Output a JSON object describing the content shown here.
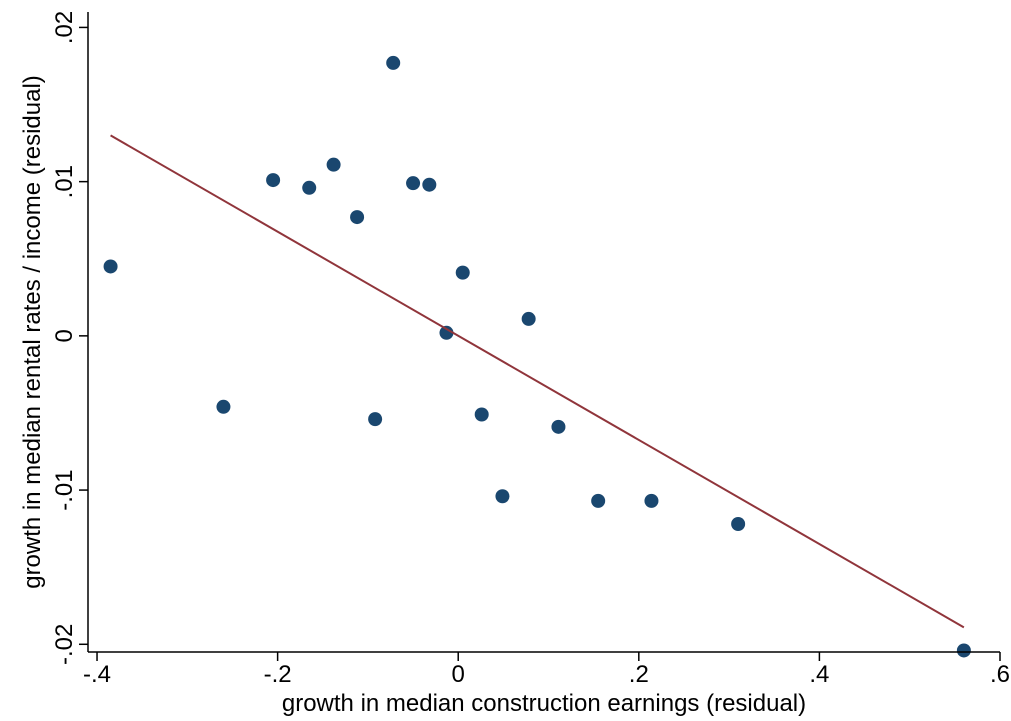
{
  "chart_data": {
    "type": "scatter",
    "title": "",
    "xlabel": "growth in median construction earnings (residual)",
    "ylabel": "growth in median rental rates / income (residual)",
    "xlim": [
      -0.41,
      0.6
    ],
    "ylim": [
      -0.0205,
      0.021
    ],
    "xticks": [
      -0.4,
      -0.2,
      0,
      0.2,
      0.4,
      0.6
    ],
    "xtick_labels": [
      "-.4",
      "-.2",
      "0",
      ".2",
      ".4",
      ".6"
    ],
    "yticks": [
      -0.02,
      -0.01,
      0,
      0.01,
      0.02
    ],
    "ytick_labels": [
      "-.02",
      "-.01",
      "0",
      ".01",
      ".02"
    ],
    "grid": false,
    "legend": "none",
    "series": [
      {
        "kind": "scatter",
        "color": "#1a476f",
        "points": [
          {
            "x": -0.385,
            "y": 0.0045
          },
          {
            "x": -0.26,
            "y": -0.0046
          },
          {
            "x": -0.205,
            "y": 0.0101
          },
          {
            "x": -0.165,
            "y": 0.0096
          },
          {
            "x": -0.138,
            "y": 0.0111
          },
          {
            "x": -0.112,
            "y": 0.0077
          },
          {
            "x": -0.092,
            "y": -0.0054
          },
          {
            "x": -0.072,
            "y": 0.0177
          },
          {
            "x": -0.05,
            "y": 0.0099
          },
          {
            "x": -0.032,
            "y": 0.0098
          },
          {
            "x": -0.013,
            "y": 0.0002
          },
          {
            "x": 0.005,
            "y": 0.0041
          },
          {
            "x": 0.026,
            "y": -0.0051
          },
          {
            "x": 0.049,
            "y": -0.0104
          },
          {
            "x": 0.078,
            "y": 0.0011
          },
          {
            "x": 0.111,
            "y": -0.0059
          },
          {
            "x": 0.155,
            "y": -0.0107
          },
          {
            "x": 0.214,
            "y": -0.0107
          },
          {
            "x": 0.31,
            "y": -0.0122
          },
          {
            "x": 0.56,
            "y": -0.0204
          }
        ]
      },
      {
        "kind": "line",
        "color": "#90353b",
        "points": [
          {
            "x": -0.385,
            "y": 0.013
          },
          {
            "x": 0.56,
            "y": -0.0189
          }
        ]
      }
    ]
  }
}
